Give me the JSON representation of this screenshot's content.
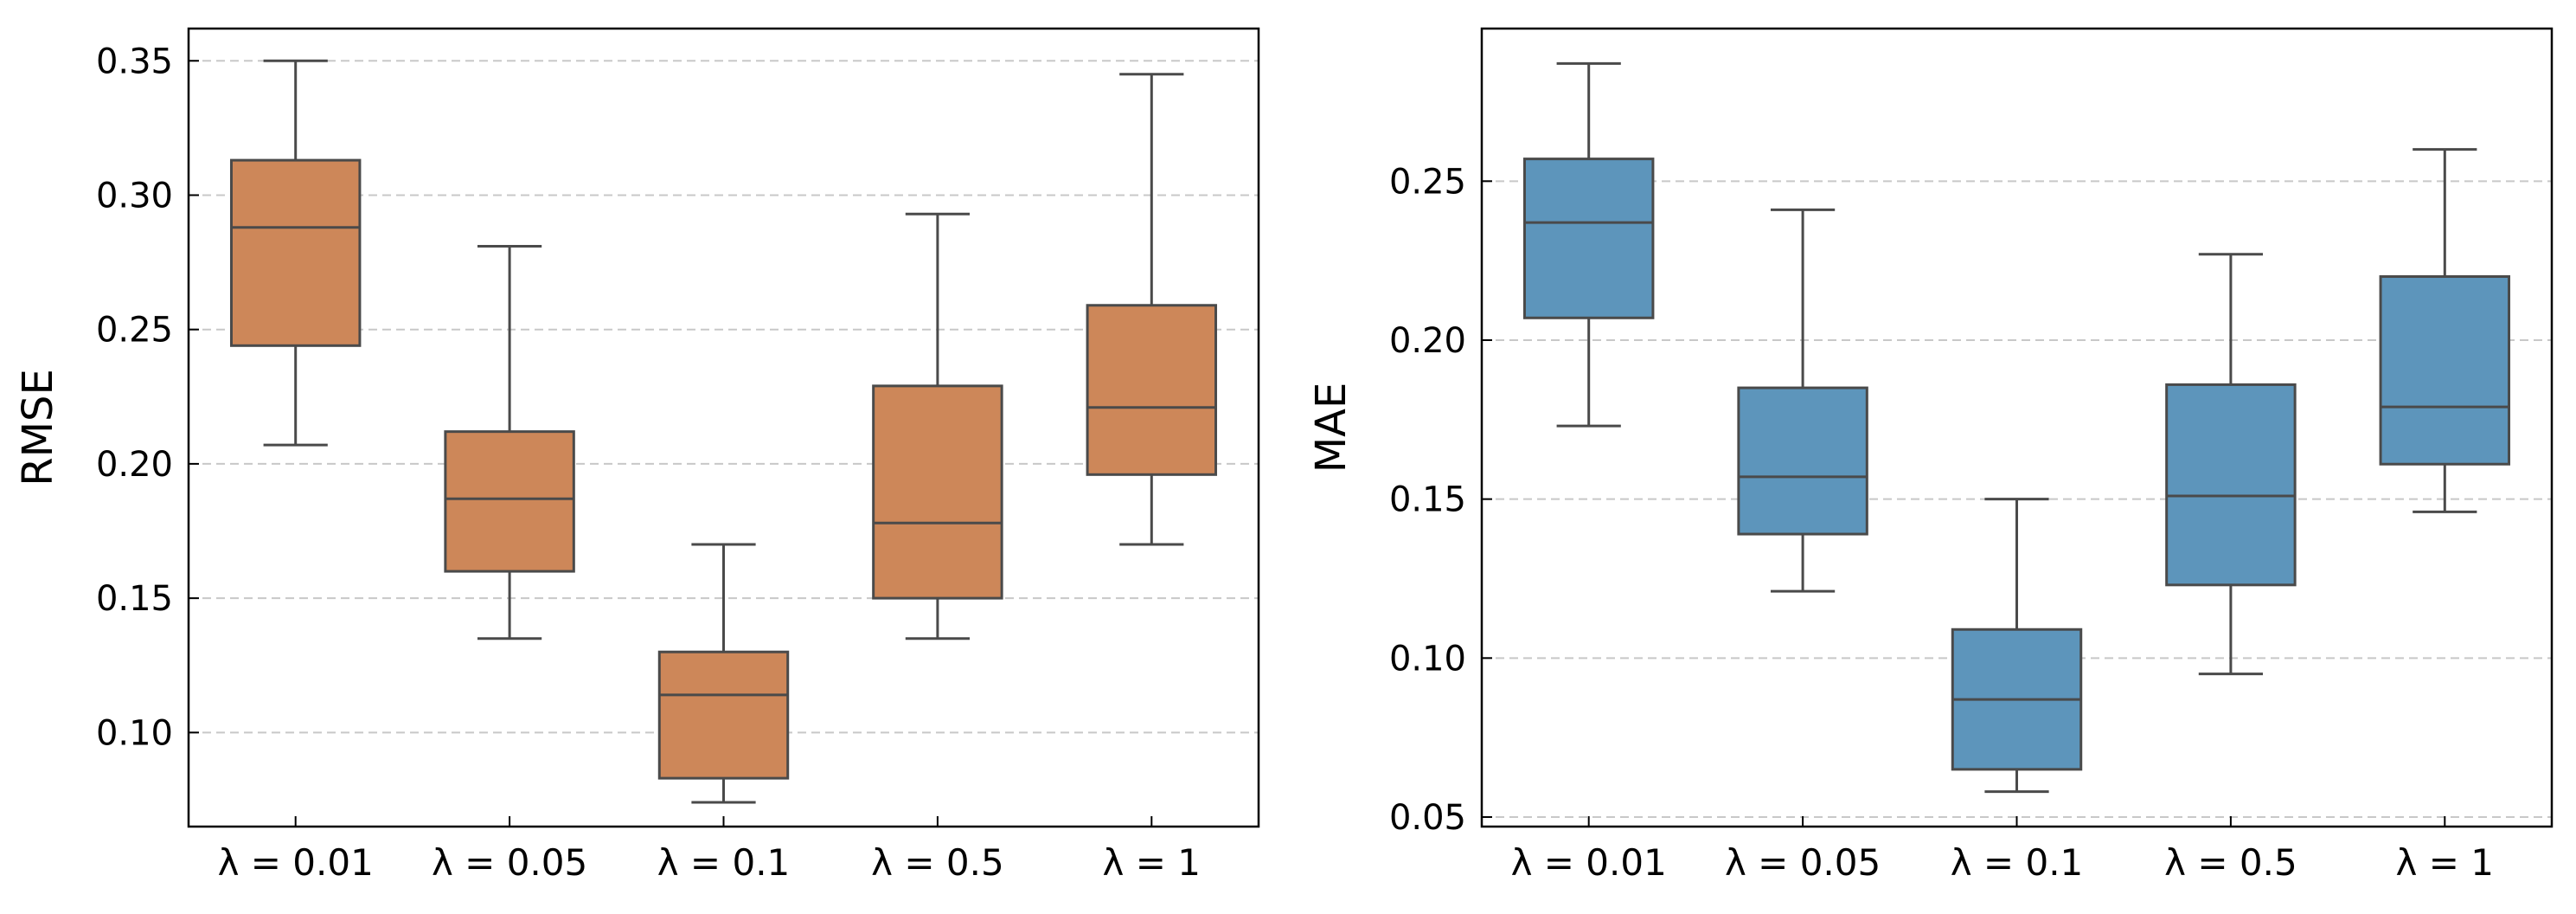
{
  "chart_data": [
    {
      "type": "box",
      "ylabel": "RMSE",
      "xlabel": "",
      "ylim": [
        0.065,
        0.362
      ],
      "yticks": [
        "0.10",
        "0.15",
        "0.20",
        "0.25",
        "0.30",
        "0.35"
      ],
      "grid": "horizontal dashed",
      "box_color": "#cd8759",
      "edge_color": "#4a4a4a",
      "categories": [
        {
          "label": "λ = 0.01",
          "whisker_low": 0.207,
          "q1": 0.244,
          "median": 0.288,
          "q3": 0.313,
          "whisker_high": 0.35
        },
        {
          "label": "λ = 0.05",
          "whisker_low": 0.135,
          "q1": 0.16,
          "median": 0.187,
          "q3": 0.212,
          "whisker_high": 0.281
        },
        {
          "label": "λ = 0.1",
          "whisker_low": 0.074,
          "q1": 0.083,
          "median": 0.114,
          "q3": 0.13,
          "whisker_high": 0.17
        },
        {
          "label": "λ = 0.5",
          "whisker_low": 0.135,
          "q1": 0.15,
          "median": 0.178,
          "q3": 0.229,
          "whisker_high": 0.293
        },
        {
          "label": "λ = 1",
          "whisker_low": 0.17,
          "q1": 0.196,
          "median": 0.221,
          "q3": 0.259,
          "whisker_high": 0.345
        }
      ]
    },
    {
      "type": "box",
      "ylabel": "MAE",
      "xlabel": "",
      "ylim": [
        0.047,
        0.298
      ],
      "yticks": [
        "0.05",
        "0.10",
        "0.15",
        "0.20",
        "0.25"
      ],
      "grid": "horizontal dashed",
      "box_color": "#5d95bb",
      "edge_color": "#4a4a4a",
      "categories": [
        {
          "label": "λ = 0.01",
          "whisker_low": 0.173,
          "q1": 0.207,
          "median": 0.237,
          "q3": 0.257,
          "whisker_high": 0.287
        },
        {
          "label": "λ = 0.05",
          "whisker_low": 0.121,
          "q1": 0.139,
          "median": 0.157,
          "q3": 0.185,
          "whisker_high": 0.241
        },
        {
          "label": "λ = 0.1",
          "whisker_low": 0.058,
          "q1": 0.065,
          "median": 0.087,
          "q3": 0.109,
          "whisker_high": 0.15
        },
        {
          "label": "λ = 0.5",
          "whisker_low": 0.095,
          "q1": 0.123,
          "median": 0.151,
          "q3": 0.186,
          "whisker_high": 0.227
        },
        {
          "label": "λ = 1",
          "whisker_low": 0.146,
          "q1": 0.161,
          "median": 0.179,
          "q3": 0.22,
          "whisker_high": 0.26
        }
      ]
    }
  ]
}
